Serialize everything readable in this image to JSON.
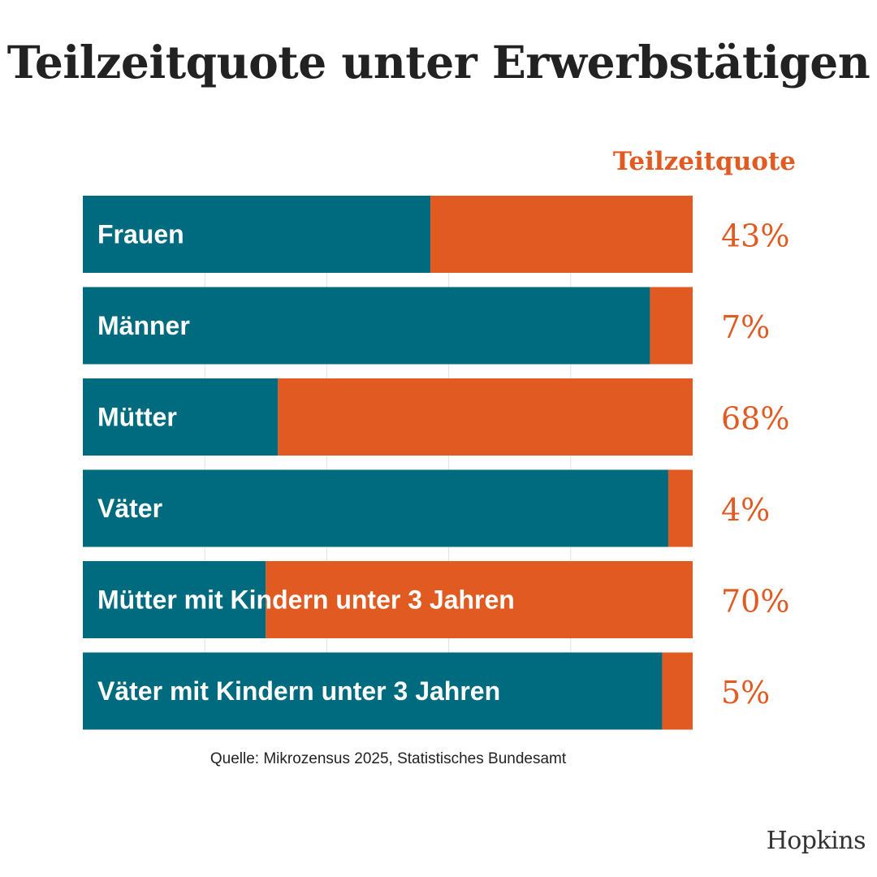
{
  "title": "Teilzeitquote unter Erwerbstätigen",
  "source": "Quelle: Mikrozensus 2025, Statistisches Bundesamt",
  "brand": "Hopkins",
  "colors": {
    "full_time": "#006b7f",
    "part_time": "#e05a22",
    "title": "#222222",
    "grid": "#e2e2e2"
  },
  "chart_data": {
    "type": "bar",
    "orientation": "horizontal",
    "stacked": true,
    "normalized": true,
    "value_column_header": "Teilzeitquote",
    "categories": [
      "Frauen",
      "Männer",
      "Mütter",
      "Väter",
      "Mütter mit Kindern unter 3 Jahren",
      "Väter mit Kindern unter 3 Jahren"
    ],
    "values": [
      43,
      7,
      68,
      4,
      70,
      5
    ],
    "value_labels": [
      "43%",
      "7%",
      "68%",
      "4%",
      "70%",
      "5%"
    ],
    "xlim": [
      0,
      100
    ],
    "grid": true,
    "legend": "none"
  }
}
